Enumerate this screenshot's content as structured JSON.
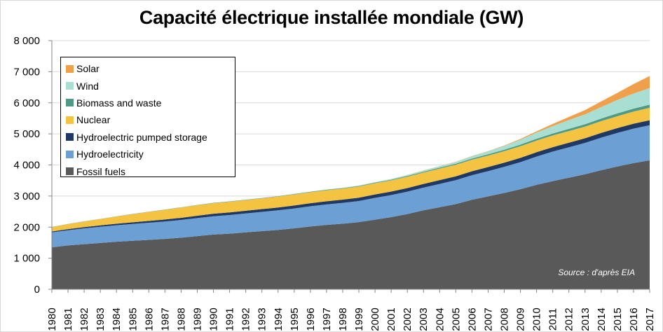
{
  "chart_data": {
    "type": "area",
    "stacked": true,
    "title": "Capacité électrique installée mondiale (GW)",
    "xlabel": "",
    "ylabel": "",
    "ylim": [
      0,
      8000
    ],
    "yticks": [
      0,
      1000,
      2000,
      3000,
      4000,
      5000,
      6000,
      7000,
      8000
    ],
    "ytick_labels": [
      "0",
      "1 000",
      "2 000",
      "3 000",
      "4 000",
      "5 000",
      "6 000",
      "7 000",
      "8 000"
    ],
    "x": [
      "1980",
      "1981",
      "1982",
      "1983",
      "1984",
      "1985",
      "1986",
      "1987",
      "1988",
      "1989",
      "1990",
      "1991",
      "1992",
      "1993",
      "1994",
      "1995",
      "1996",
      "1997",
      "1998",
      "1999",
      "2000",
      "2001",
      "2002",
      "2003",
      "2004",
      "2005",
      "2006",
      "2007",
      "2008",
      "2009",
      "2010",
      "2011",
      "2012",
      "2013",
      "2014",
      "2015",
      "2016",
      "2017"
    ],
    "grid": true,
    "legend_position": "top-left",
    "series": [
      {
        "name": "Fossil fuels",
        "color": "#595959",
        "values": [
          1350,
          1410,
          1450,
          1490,
          1530,
          1560,
          1590,
          1620,
          1660,
          1710,
          1760,
          1790,
          1830,
          1870,
          1910,
          1960,
          2020,
          2070,
          2110,
          2160,
          2240,
          2320,
          2420,
          2540,
          2640,
          2740,
          2880,
          2990,
          3100,
          3220,
          3360,
          3480,
          3590,
          3700,
          3830,
          3950,
          4060,
          4150
        ]
      },
      {
        "name": "Hydroelectricity",
        "color": "#6c9fd3",
        "values": [
          480,
          490,
          510,
          520,
          530,
          540,
          550,
          560,
          570,
          580,
          590,
          600,
          610,
          620,
          630,
          640,
          650,
          660,
          670,
          680,
          700,
          710,
          720,
          730,
          750,
          770,
          790,
          810,
          840,
          870,
          910,
          950,
          980,
          1010,
          1050,
          1080,
          1110,
          1130
        ]
      },
      {
        "name": "Hydroelectric pumped storage",
        "color": "#1f3864",
        "values": [
          30,
          35,
          40,
          45,
          50,
          55,
          60,
          65,
          70,
          75,
          80,
          83,
          86,
          89,
          92,
          95,
          98,
          101,
          104,
          107,
          110,
          113,
          116,
          119,
          122,
          125,
          128,
          131,
          134,
          137,
          140,
          143,
          146,
          149,
          152,
          155,
          158,
          160
        ]
      },
      {
        "name": "Nuclear",
        "color": "#f5c342",
        "values": [
          140,
          160,
          180,
          200,
          230,
          260,
          290,
          310,
          330,
          340,
          340,
          345,
          345,
          345,
          350,
          355,
          355,
          355,
          355,
          360,
          360,
          360,
          365,
          365,
          370,
          370,
          370,
          370,
          370,
          375,
          375,
          375,
          375,
          375,
          380,
          385,
          390,
          400
        ]
      },
      {
        "name": "Biomass and waste",
        "color": "#4f9a86",
        "values": [
          5,
          5,
          5,
          6,
          6,
          7,
          7,
          8,
          8,
          9,
          10,
          10,
          11,
          12,
          13,
          14,
          15,
          16,
          17,
          18,
          20,
          22,
          24,
          27,
          30,
          34,
          38,
          42,
          47,
          52,
          58,
          64,
          70,
          76,
          82,
          88,
          94,
          100
        ]
      },
      {
        "name": "Wind",
        "color": "#a8dfd2",
        "values": [
          0,
          0,
          0,
          0,
          0,
          0,
          0,
          0,
          2,
          2,
          2,
          3,
          3,
          3,
          4,
          5,
          6,
          8,
          10,
          14,
          18,
          24,
          31,
          40,
          48,
          59,
          74,
          93,
          120,
          158,
          198,
          238,
          283,
          318,
          370,
          433,
          487,
          532
        ]
      },
      {
        "name": "Solar",
        "color": "#f0a04b",
        "values": [
          0,
          0,
          0,
          0,
          0,
          0,
          0,
          0,
          0,
          0,
          0,
          0,
          0,
          0,
          0,
          0,
          0,
          0,
          0,
          0,
          1,
          1,
          2,
          3,
          4,
          5,
          7,
          10,
          15,
          24,
          40,
          71,
          101,
          139,
          180,
          227,
          303,
          390
        ]
      }
    ],
    "source": "Source : d'après EIA"
  },
  "legend_order": [
    "Solar",
    "Wind",
    "Biomass and waste",
    "Nuclear",
    "Hydroelectric pumped storage",
    "Hydroelectricity",
    "Fossil fuels"
  ]
}
